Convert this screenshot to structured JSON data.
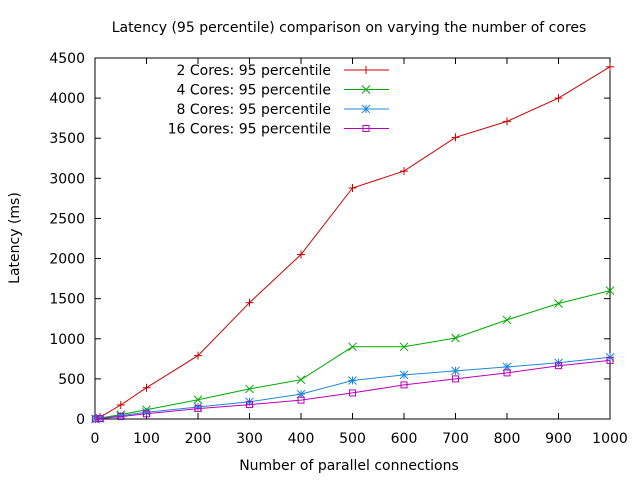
{
  "chart_data": {
    "type": "line",
    "title": "Latency (95 percentile) comparison on varying the number of cores",
    "xlabel": "Number of parallel connections",
    "ylabel": "Latency (ms)",
    "xlim": [
      0,
      1000
    ],
    "ylim": [
      0,
      4500
    ],
    "xticks": [
      0,
      100,
      200,
      300,
      400,
      500,
      600,
      700,
      800,
      900,
      1000
    ],
    "yticks": [
      0,
      500,
      1000,
      1500,
      2000,
      2500,
      3000,
      3500,
      4000,
      4500
    ],
    "grid": false,
    "legend_position": "top-left",
    "series": [
      {
        "name": "2 Cores: 95 percentile",
        "color": "#cc0000",
        "marker": "plus",
        "x": [
          1,
          10,
          50,
          100,
          200,
          300,
          400,
          500,
          600,
          700,
          800,
          900,
          1000
        ],
        "y": [
          1,
          25,
          175,
          390,
          790,
          1450,
          2050,
          2880,
          3090,
          3510,
          3710,
          4000,
          4390
        ]
      },
      {
        "name": "4 Cores: 95 percentile",
        "color": "#00aa00",
        "marker": "cross",
        "x": [
          1,
          10,
          50,
          100,
          200,
          300,
          400,
          500,
          600,
          700,
          800,
          900,
          1000
        ],
        "y": [
          1,
          12,
          55,
          115,
          240,
          375,
          490,
          900,
          900,
          1010,
          1235,
          1440,
          1600
        ]
      },
      {
        "name": "8 Cores: 95 percentile",
        "color": "#1e88d8",
        "marker": "star",
        "x": [
          1,
          10,
          50,
          100,
          200,
          300,
          400,
          500,
          600,
          700,
          800,
          900,
          1000
        ],
        "y": [
          1,
          8,
          40,
          85,
          150,
          215,
          310,
          480,
          550,
          600,
          650,
          700,
          770
        ]
      },
      {
        "name": "16 Cores: 95 percentile",
        "color": "#bb00bb",
        "marker": "square",
        "x": [
          1,
          10,
          50,
          100,
          200,
          300,
          400,
          500,
          600,
          700,
          800,
          900,
          1000
        ],
        "y": [
          1,
          6,
          30,
          65,
          130,
          180,
          235,
          325,
          425,
          500,
          575,
          665,
          730
        ]
      }
    ]
  }
}
